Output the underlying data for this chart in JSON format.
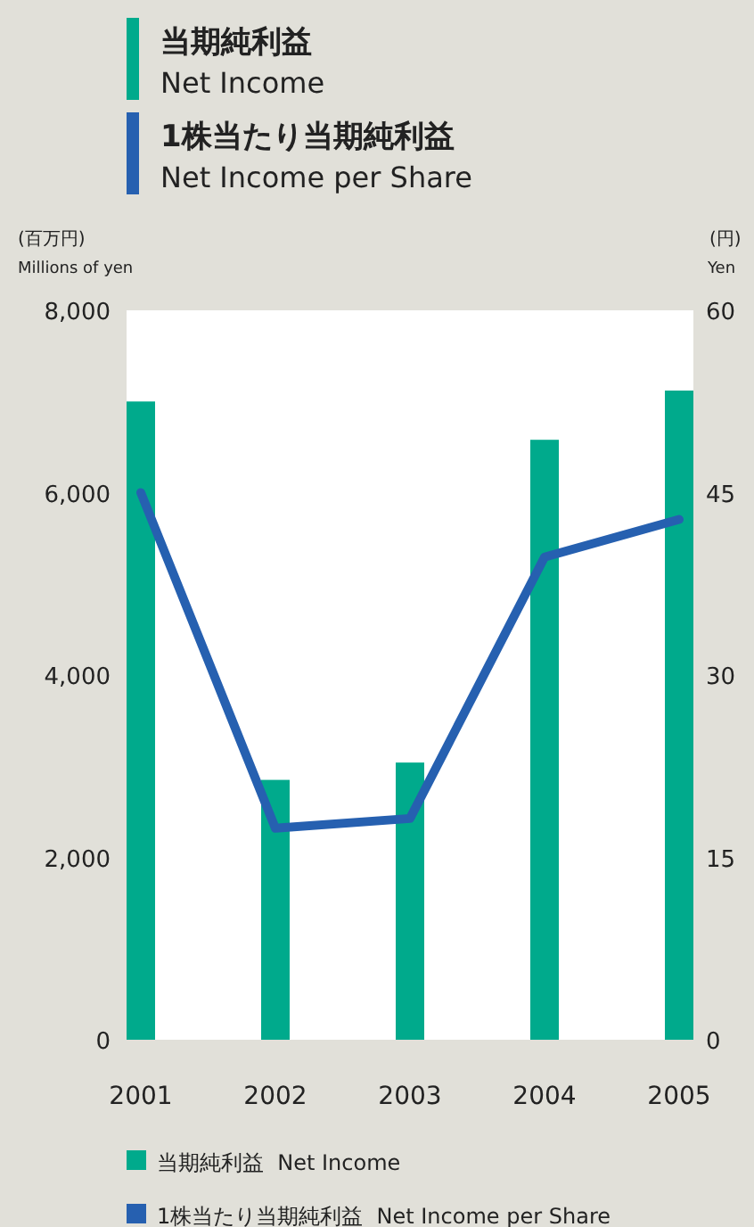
{
  "chart_data": {
    "type": "bar",
    "title": "当期純利益 Net Income",
    "subtitle": "1株当たり当期純利益 Net Income per Share",
    "ylabel": "(百万円) Millions of yen",
    "y2label": "(円) Yen",
    "categories": [
      "2001",
      "2002",
      "2003",
      "2004",
      "2005"
    ],
    "series": [
      {
        "name": "当期純利益  Net Income",
        "color": "#00aa8c",
        "values": [
          7000,
          2850,
          3040,
          6580,
          7120
        ]
      },
      {
        "name": "1株当たり当期純利益  Net Income per Share",
        "type": "line",
        "axis": "y2",
        "color": "#2660b0",
        "values": [
          45.0,
          17.4,
          18.2,
          39.7,
          42.8
        ]
      }
    ],
    "ylim": [
      0,
      8000
    ],
    "yticks": [
      0,
      {
        "value": 2000,
        "label": "2,000"
      },
      {
        "value": 4000,
        "label": "4,000"
      },
      {
        "value": 6000,
        "label": "6,000"
      },
      {
        "value": 8000,
        "label": "8,000"
      }
    ],
    "y2lim": [
      0,
      60
    ],
    "y2ticks": [
      0,
      15,
      30,
      45,
      60
    ],
    "legend": "bottom",
    "grid": false,
    "marker": "none",
    "line_style": "solid"
  }
}
